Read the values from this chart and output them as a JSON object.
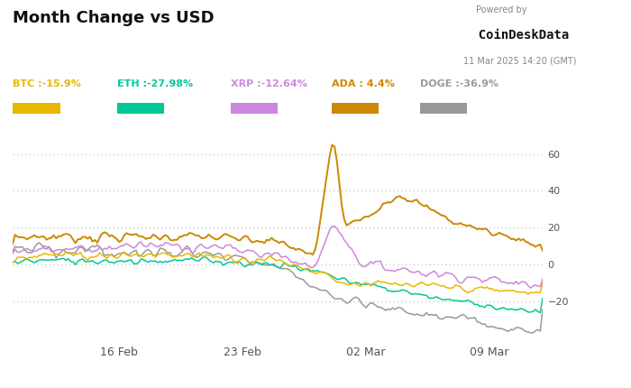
{
  "title": "Month Change vs USD",
  "powered_by": "Powered by",
  "brand": "  CoinDeskData",
  "date_label": "11 Mar 2025 14:20 (GMT)",
  "legend_items": [
    {
      "label": "BTC :-15.9%",
      "color": "#E8B800"
    },
    {
      "label": "ETH :-27.98%",
      "color": "#00C896"
    },
    {
      "label": "XRP :-12.64%",
      "color": "#CC88DD"
    },
    {
      "label": "ADA : 4.4%",
      "color": "#CC8800"
    },
    {
      "label": "DOGE :-36.9%",
      "color": "#999999"
    }
  ],
  "xtick_labels": [
    "16 Feb",
    "23 Feb",
    "02 Mar",
    "09 Mar"
  ],
  "ytick_values": [
    -20,
    0,
    20,
    40,
    60
  ],
  "ylim": [
    -42,
    72
  ],
  "colors": {
    "BTC": "#E8B800",
    "ETH": "#00C896",
    "XRP": "#CC88DD",
    "ADA": "#CC8800",
    "DOGE": "#999999"
  },
  "background": "#ffffff",
  "grid_color": "#bbbbbb"
}
